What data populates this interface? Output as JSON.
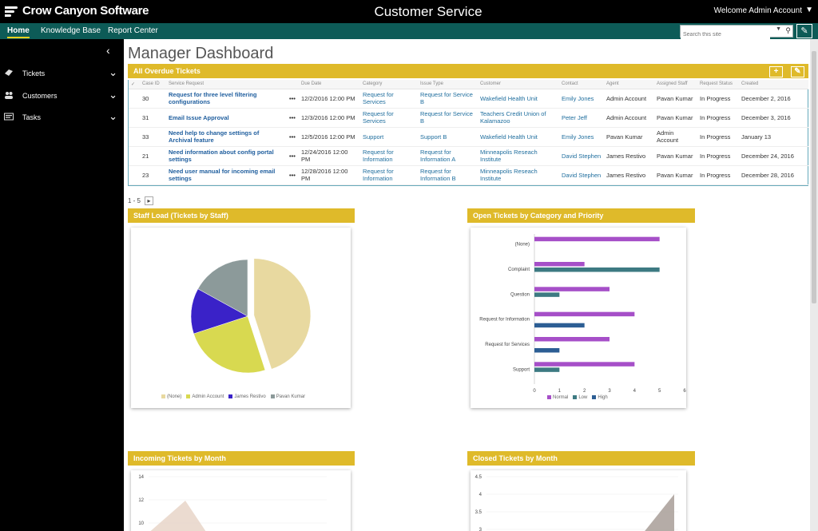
{
  "header": {
    "logo": "Crow Canyon Software",
    "title": "Customer Service",
    "welcome": "Welcome Admin Account"
  },
  "nav": {
    "links": [
      "Home",
      "Knowledge Base",
      "Report Center"
    ],
    "search_placeholder": "Search this site"
  },
  "sidebar": {
    "items": [
      {
        "label": "Tickets",
        "icon": "ticket-icon"
      },
      {
        "label": "Customers",
        "icon": "users-icon"
      },
      {
        "label": "Tasks",
        "icon": "tasks-icon"
      }
    ]
  },
  "dashboard": {
    "title": "Manager Dashboard",
    "overdue": {
      "title": "All Overdue Tickets",
      "columns": [
        "✓",
        "Case ID",
        "Service Request",
        "",
        "Due Date",
        "Category",
        "Issue Type",
        "Customer",
        "Contact",
        "Agent",
        "Assigned Staff",
        "Request Status",
        "Created"
      ],
      "rows": [
        [
          "30",
          "Request for three level filtering configurations",
          "12/2/2016 12:00 PM",
          "Request for Services",
          "Request for Service B",
          "Wakefield Health Unit",
          "Emily Jones",
          "Admin Account",
          "Pavan Kumar",
          "In Progress",
          "December 2, 2016"
        ],
        [
          "31",
          "Email Issue Approval",
          "12/3/2016 12:00 PM",
          "Request for Services",
          "Request for Service B",
          "Teachers Credit Union of Kalamazoo",
          "Peter Jeff",
          "Admin Account",
          "Pavan Kumar",
          "In Progress",
          "December 3, 2016"
        ],
        [
          "33",
          "Need help to change settings of Archival feature",
          "12/5/2016 12:00 PM",
          "Support",
          "Support B",
          "Wakefield Health Unit",
          "Emily Jones",
          "Pavan Kumar",
          "Admin Account",
          "In Progress",
          "January 13"
        ],
        [
          "21",
          "Need information about config portal settings",
          "12/24/2016 12:00 PM",
          "Request for Information",
          "Request for Information A",
          "Minneapolis Reseach Institute",
          "David Stephen",
          "James Restivo",
          "Pavan Kumar",
          "In Progress",
          "December 24, 2016"
        ],
        [
          "23",
          "Need user manual for incoming email settings",
          "12/28/2016 12:00 PM",
          "Request for Information",
          "Request for Information B",
          "Minneapolis Reseach Institute",
          "David Stephen",
          "James Restivo",
          "Pavan Kumar",
          "In Progress",
          "December 28, 2016"
        ]
      ],
      "pager": "1 - 5",
      "pager_next": "▸"
    },
    "staff_load": {
      "title": "Staff Load (Tickets by Staff)"
    },
    "open_tickets": {
      "title": "Open Tickets by Category and Priority"
    },
    "incoming": {
      "title": "Incoming Tickets by Month"
    },
    "closed": {
      "title": "Closed Tickets by Month"
    }
  },
  "chart_data": [
    {
      "type": "pie",
      "title": "Staff Load (Tickets by Staff)",
      "categories": [
        "(None)",
        "Admin Account",
        "James Restivo",
        "Pavan Kumar"
      ],
      "values": [
        45,
        25,
        13,
        17
      ],
      "colors": [
        "#e8d9a0",
        "#d8d950",
        "#3a22c8",
        "#8c9a9a"
      ]
    },
    {
      "type": "bar",
      "orientation": "horizontal",
      "title": "Open Tickets by Category and Priority",
      "categories": [
        "(None)",
        "Complaint",
        "Question",
        "Request for Information",
        "Request for Services",
        "Support"
      ],
      "series": [
        {
          "name": "Normal",
          "values": [
            5,
            2,
            3,
            4,
            3,
            4
          ],
          "color": "#a64fc8"
        },
        {
          "name": "Low",
          "values": [
            0,
            5,
            1,
            0,
            0,
            1
          ],
          "color": "#3d7a82"
        },
        {
          "name": "High",
          "values": [
            0,
            0,
            0,
            2,
            1,
            0
          ],
          "color": "#2c5e94"
        }
      ],
      "xlim": [
        0,
        6
      ],
      "xticks": [
        "0",
        "1",
        "2",
        "3",
        "4",
        "5",
        "6"
      ]
    },
    {
      "type": "area",
      "title": "Incoming Tickets by Month",
      "yticks": [
        "14",
        "12",
        "10"
      ]
    },
    {
      "type": "area",
      "title": "Closed Tickets by Month",
      "yticks": [
        "4.5",
        "4",
        "3.5",
        "3"
      ]
    }
  ]
}
